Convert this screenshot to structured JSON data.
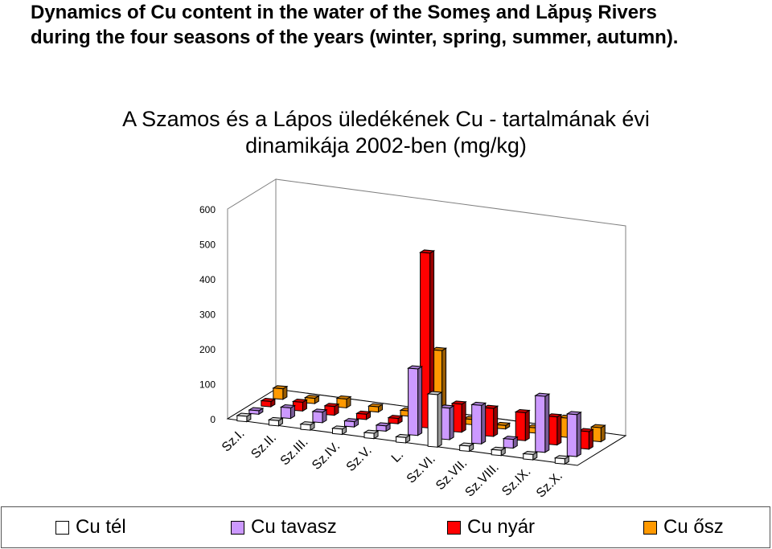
{
  "heading": {
    "line1": "Dynamics of Cu content in the water of the Someş and Lăpuş Rivers",
    "line2": "during the four seasons of the years (winter, spring, summer, autumn)."
  },
  "chart_data": {
    "type": "bar",
    "title_line1": "A Szamos és a Lápos üledékének Cu - tartalmának évi",
    "title_line2": "dinamikája 2002-ben (mg/kg)",
    "categories": [
      "Sz.I.",
      "Sz.II.",
      "Sz.III.",
      "Sz.IV.",
      "Sz.V.",
      "L.",
      "Sz.VI.",
      "Sz.VII.",
      "Sz.VIII.",
      "Sz.IX.",
      "Sz.X."
    ],
    "y_ticks": [
      "0",
      "100",
      "200",
      "300",
      "400",
      "500",
      "600"
    ],
    "ylim": [
      0,
      600
    ],
    "grid": false,
    "legend_position": "bottom",
    "series": [
      {
        "name": "Cu tél",
        "color": "#ffffff",
        "values": [
          15,
          15,
          15,
          15,
          15,
          15,
          150,
          15,
          15,
          15,
          15
        ]
      },
      {
        "name": "Cu tavasz",
        "color": "#cc99ff",
        "values": [
          10,
          30,
          30,
          15,
          15,
          190,
          90,
          110,
          25,
          160,
          120
        ]
      },
      {
        "name": "Cu nyár",
        "color": "#ff0000",
        "values": [
          15,
          25,
          25,
          15,
          15,
          500,
          80,
          80,
          80,
          80,
          50
        ]
      },
      {
        "name": "Cu ősz",
        "color": "#ff9900",
        "values": [
          30,
          15,
          25,
          15,
          15,
          200,
          15,
          10,
          15,
          55,
          40
        ]
      }
    ]
  }
}
